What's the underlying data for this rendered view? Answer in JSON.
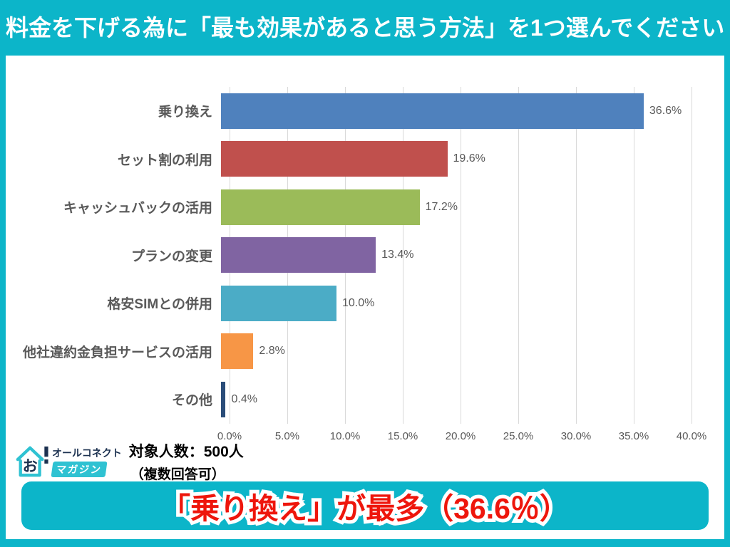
{
  "title": "料金を下げる為に「最も効果があると思う方法」を1つ選んでください",
  "chart_data": {
    "type": "bar",
    "orientation": "horizontal",
    "categories": [
      "乗り換え",
      "セット割の利用",
      "キャッシュバックの活用",
      "プランの変更",
      "格安SIMとの併用",
      "他社違約金負担サービスの活用",
      "その他"
    ],
    "values": [
      36.6,
      19.6,
      17.2,
      13.4,
      10.0,
      2.8,
      0.4
    ],
    "value_labels": [
      "36.6%",
      "19.6%",
      "17.2%",
      "13.4%",
      "10.0%",
      "2.8%",
      "0.4%"
    ],
    "bar_colors": [
      "#4f81bd",
      "#c0504d",
      "#9bbb59",
      "#8064a2",
      "#4bacc6",
      "#f79646",
      "#2b4d79"
    ],
    "xlim": [
      0,
      40
    ],
    "x_ticks": [
      "0.0%",
      "5.0%",
      "10.0%",
      "15.0%",
      "20.0%",
      "25.0%",
      "30.0%",
      "35.0%",
      "40.0%"
    ],
    "grid": true,
    "legend": false,
    "title": "",
    "xlabel": "",
    "ylabel": ""
  },
  "logo": {
    "brand": "オールコネクト",
    "sub": "マガジン",
    "mark": "お",
    "icon": "house-logo-icon"
  },
  "source": {
    "sample": "対象人数：500人",
    "note": "（複数回答可）"
  },
  "banner": {
    "text": "「乗り換え」が最多（36.6％）"
  },
  "colors": {
    "background": "#0cb5c9",
    "panel": "#ffffff",
    "grid": "#d9d9d9",
    "axis_text": "#595959",
    "category_text": "#595959",
    "banner_bg": "#0cb5c9",
    "banner_text": "#ee160c",
    "brand_navy": "#1c3150",
    "logo_cyan": "#2fc2d2"
  }
}
